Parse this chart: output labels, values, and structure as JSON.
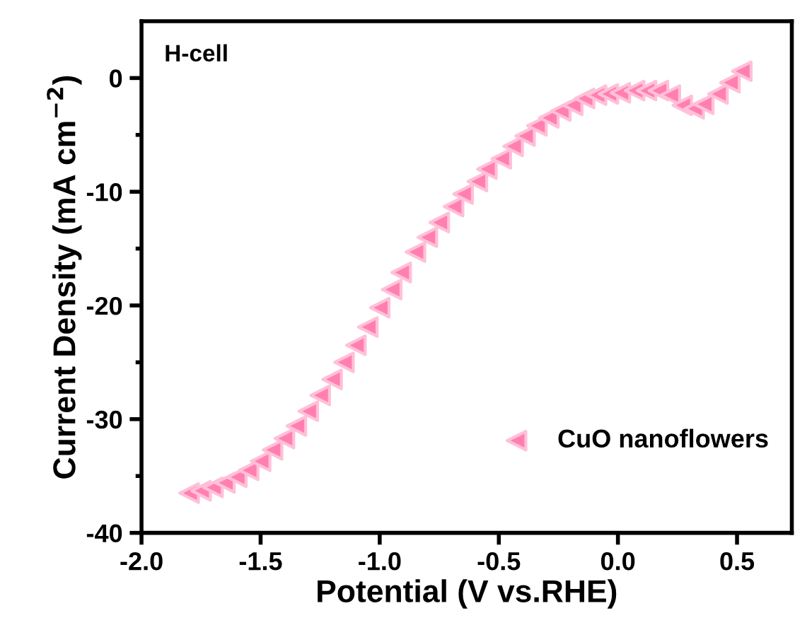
{
  "chart_data": {
    "type": "scatter",
    "xlabel": "Potential (V vs.RHE)",
    "ylabel": "Current Density (mA cm$^{−2}$)",
    "annotations": [
      "H-cell"
    ],
    "series": [
      {
        "name": "CuO nanoflowers",
        "color": "#ff80b0",
        "x": [
          -1.8,
          -1.75,
          -1.7,
          -1.65,
          -1.6,
          -1.55,
          -1.5,
          -1.45,
          -1.4,
          -1.35,
          -1.3,
          -1.25,
          -1.2,
          -1.15,
          -1.1,
          -1.05,
          -1.0,
          -0.95,
          -0.91,
          -0.85,
          -0.8,
          -0.75,
          -0.69,
          -0.65,
          -0.59,
          -0.55,
          -0.49,
          -0.44,
          -0.39,
          -0.34,
          -0.29,
          -0.24,
          -0.19,
          -0.14,
          -0.09,
          -0.04,
          0.01,
          0.07,
          0.12,
          0.17,
          0.22,
          0.27,
          0.32,
          0.36,
          0.42,
          0.47,
          0.52
        ],
        "values": [
          -36.5,
          -36.3,
          -36.0,
          -35.6,
          -35.1,
          -34.5,
          -33.7,
          -32.7,
          -31.7,
          -30.6,
          -29.3,
          -27.9,
          -26.5,
          -25.0,
          -23.5,
          -21.9,
          -20.2,
          -18.6,
          -17.1,
          -15.3,
          -14.0,
          -12.7,
          -11.3,
          -10.2,
          -9.1,
          -8.0,
          -7.1,
          -6.0,
          -5.1,
          -4.2,
          -3.5,
          -2.9,
          -2.4,
          -1.8,
          -1.5,
          -1.4,
          -1.3,
          -1.1,
          -1.1,
          -1.1,
          -1.5,
          -2.4,
          -2.7,
          -2.3,
          -1.4,
          -0.4,
          0.6
        ]
      }
    ],
    "marker": "triangle",
    "xlim": [
      -2.0,
      0.73
    ],
    "ylim": [
      -40,
      5
    ],
    "xticks": [
      {
        "value": -2.0,
        "label": "-2.0"
      },
      {
        "value": -1.5,
        "label": "-1.5"
      },
      {
        "value": -1.0,
        "label": "-1.0"
      },
      {
        "value": -0.5,
        "label": "-0.5"
      },
      {
        "value": 0.0,
        "label": "0.0"
      },
      {
        "value": 0.5,
        "label": "0.5"
      }
    ],
    "yticks": [
      {
        "value": -40,
        "label": "-40"
      },
      {
        "value": -35,
        "label": null
      },
      {
        "value": -30,
        "label": "-30"
      },
      {
        "value": -25,
        "label": null
      },
      {
        "value": -20,
        "label": "-20"
      },
      {
        "value": -15,
        "label": null
      },
      {
        "value": -10,
        "label": "-10"
      },
      {
        "value": -5,
        "label": null
      },
      0
    ],
    "grid": false,
    "legend": "right"
  }
}
